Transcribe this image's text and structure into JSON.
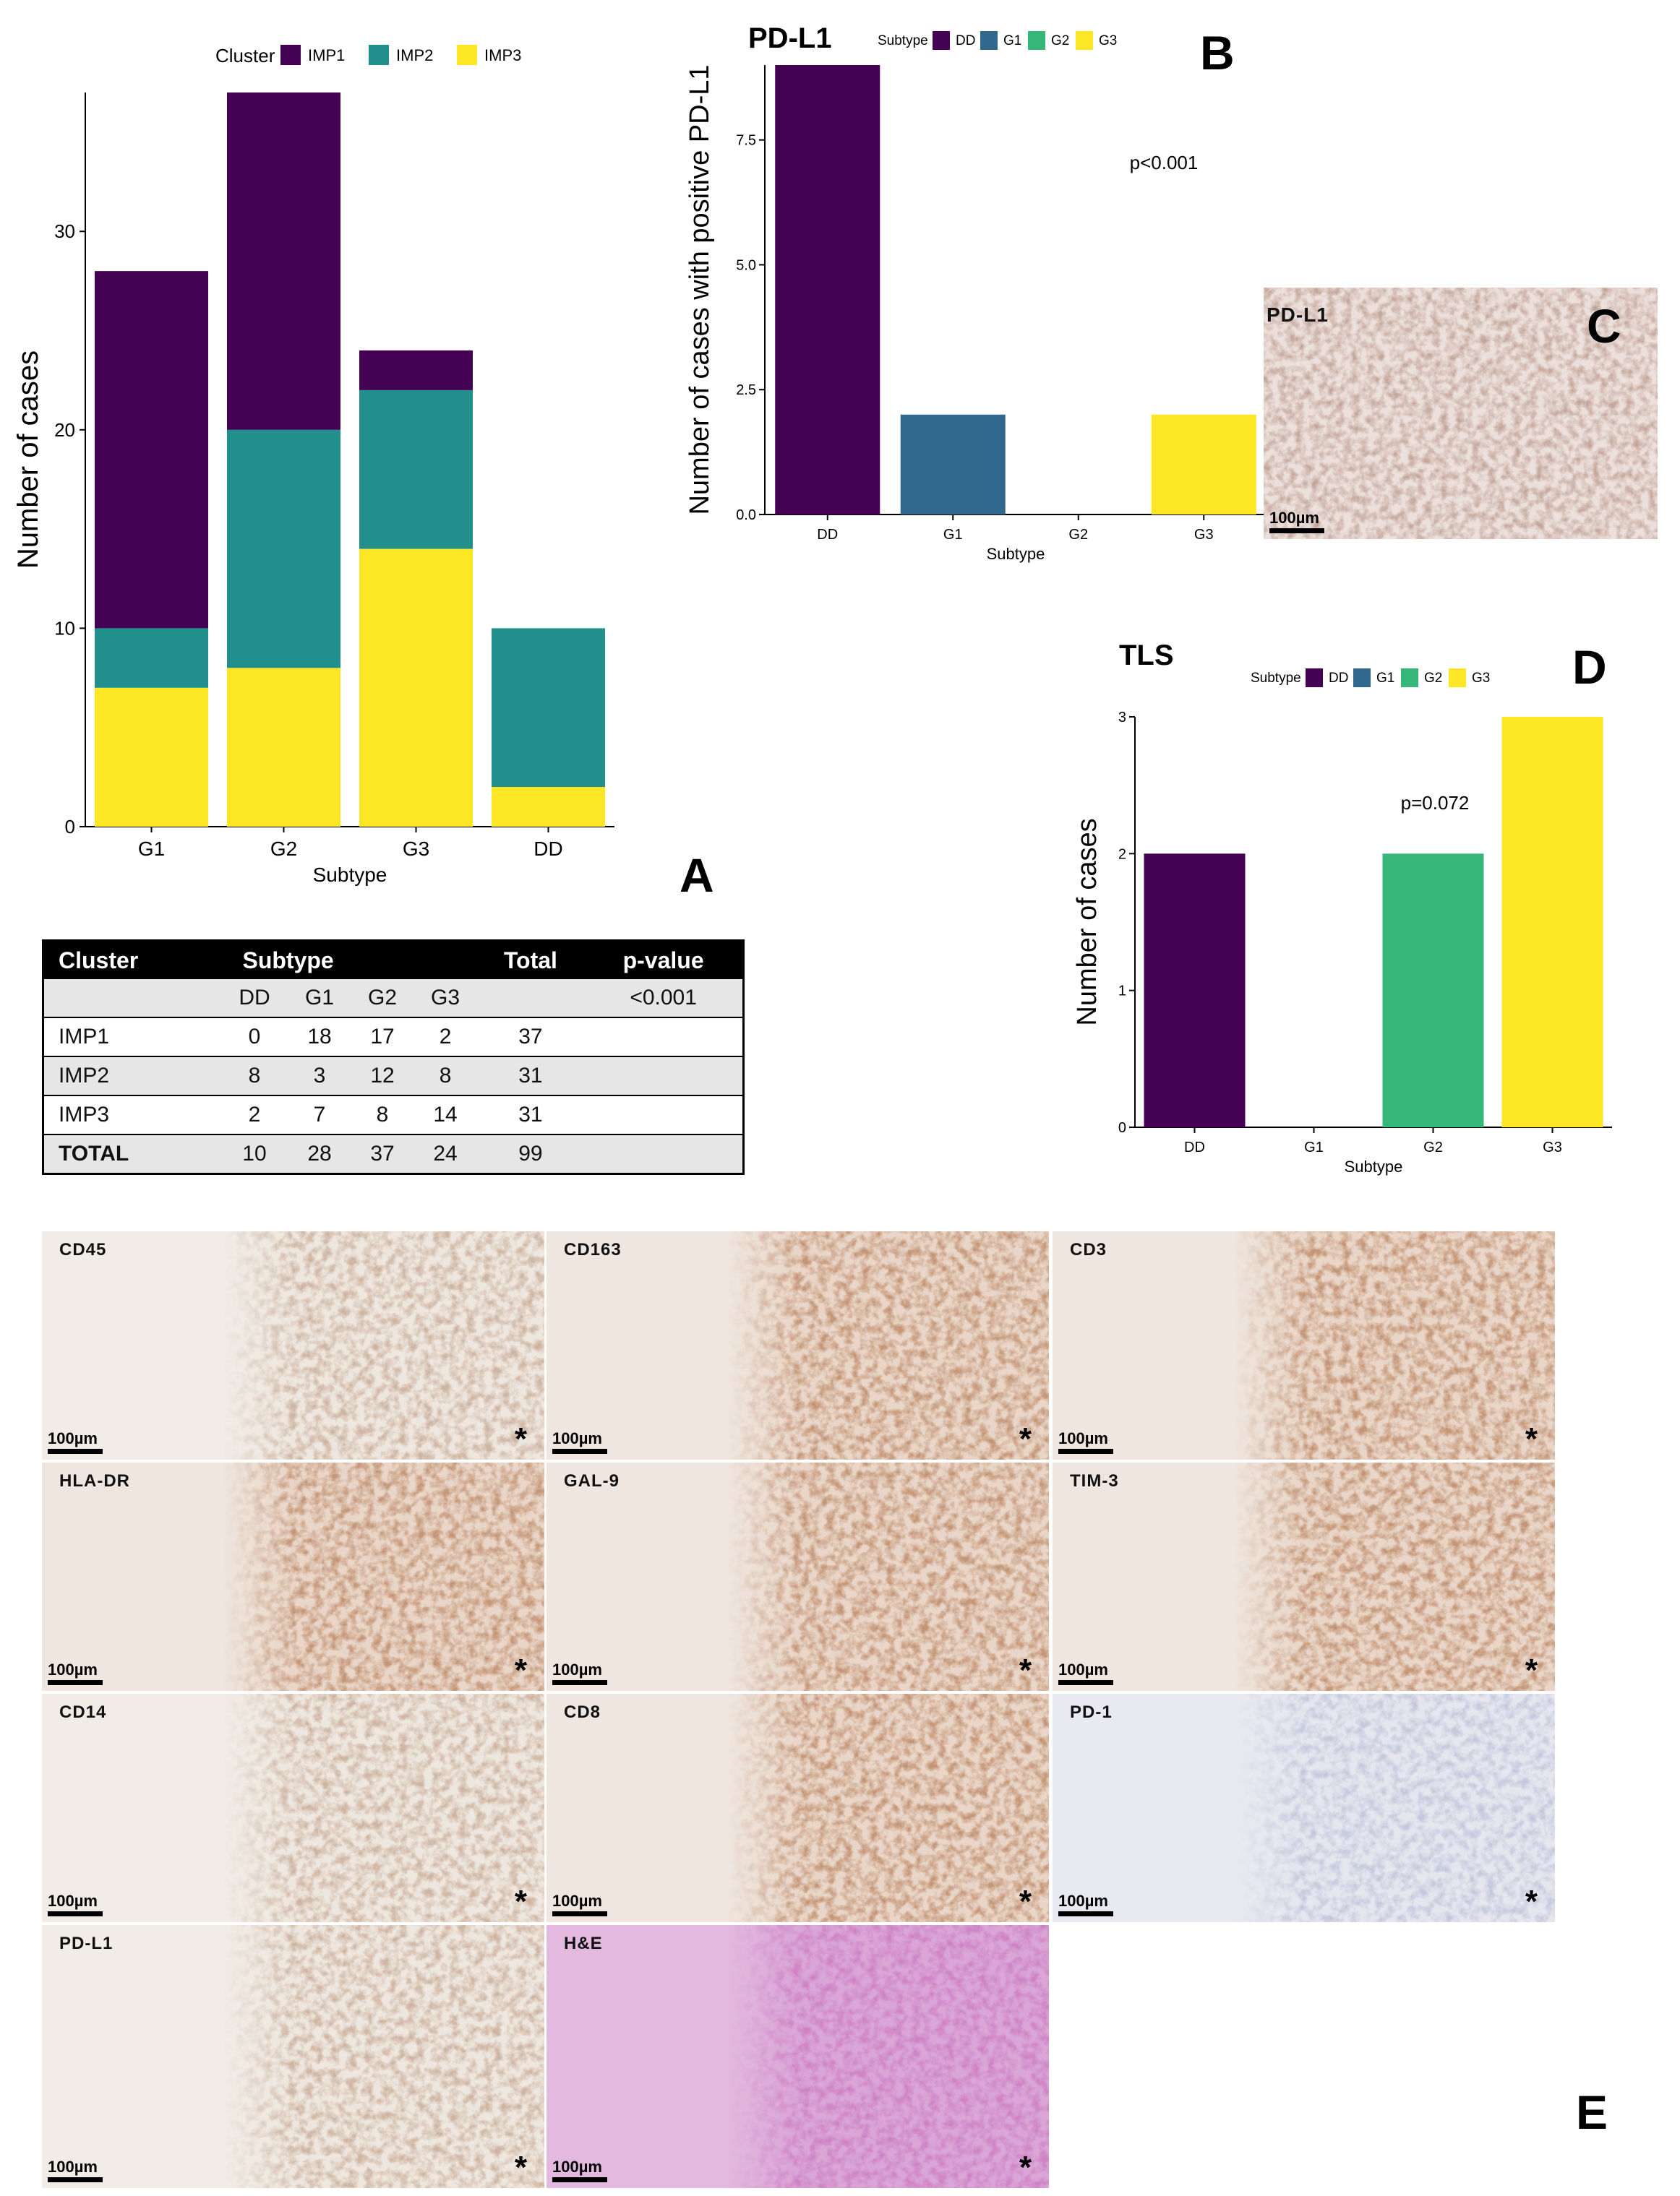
{
  "chart_data": [
    {
      "id": "A",
      "type": "bar",
      "stacked": true,
      "categories": [
        "G1",
        "G2",
        "G3",
        "DD"
      ],
      "series": [
        {
          "name": "IMP3",
          "color": "#fde725",
          "values": [
            7,
            8,
            14,
            2
          ]
        },
        {
          "name": "IMP2",
          "color": "#21908d",
          "values": [
            3,
            12,
            8,
            8
          ]
        },
        {
          "name": "IMP1",
          "color": "#440154",
          "values": [
            18,
            17,
            2,
            0
          ]
        }
      ],
      "legend_title": "Cluster",
      "legend_position": "top",
      "xlabel": "Subtype",
      "ylabel": "Number of cases",
      "ylim": [
        0,
        37
      ],
      "yticks": [
        0,
        10,
        20,
        30
      ],
      "grid": false
    },
    {
      "id": "B",
      "type": "bar",
      "title": "PD-L1",
      "categories": [
        "DD",
        "G1",
        "G2",
        "G3"
      ],
      "values": [
        9,
        2,
        0,
        2
      ],
      "colors": [
        "#440154",
        "#31688e",
        "#35b779",
        "#fde725"
      ],
      "legend_title": "Subtype",
      "legend": [
        "DD",
        "G1",
        "G2",
        "G3"
      ],
      "legend_position": "top",
      "xlabel": "Subtype",
      "ylabel": "Number of cases with positive PD-L1",
      "ylim": [
        0,
        9
      ],
      "yticks": [
        "0.0",
        "2.5",
        "5.0",
        "7.5"
      ],
      "annotation": "p<0.001",
      "grid": false
    },
    {
      "id": "D",
      "type": "bar",
      "title": "TLS",
      "categories": [
        "DD",
        "G1",
        "G2",
        "G3"
      ],
      "values": [
        2,
        0,
        2,
        3
      ],
      "colors": [
        "#440154",
        "#31688e",
        "#35b779",
        "#fde725"
      ],
      "legend_title": "Subtype",
      "legend": [
        "DD",
        "G1",
        "G2",
        "G3"
      ],
      "legend_position": "top",
      "xlabel": "Subtype",
      "ylabel": "Number of cases",
      "ylim": [
        0,
        3
      ],
      "yticks": [
        0,
        1,
        2,
        3
      ],
      "annotation": "p=0.072",
      "grid": false
    },
    {
      "id": "table",
      "type": "table",
      "header": [
        "Cluster",
        "Subtype",
        "Total",
        "p-value"
      ],
      "subheader": [
        "",
        "DD",
        "G1",
        "G2",
        "G3",
        "",
        "<0.001"
      ],
      "rows": [
        [
          "IMP1",
          "0",
          "18",
          "17",
          "2",
          "37",
          ""
        ],
        [
          "IMP2",
          "8",
          "3",
          "12",
          "8",
          "31",
          ""
        ],
        [
          "IMP3",
          "2",
          "7",
          "8",
          "14",
          "31",
          ""
        ],
        [
          "TOTAL",
          "10",
          "28",
          "37",
          "24",
          "99",
          ""
        ]
      ]
    }
  ],
  "panel_letters": {
    "a": "A",
    "b": "B",
    "c": "C",
    "d": "D",
    "e": "E"
  },
  "panel_c": {
    "label": "PD-L1",
    "scale": "100µm"
  },
  "panel_e": {
    "scale": "100µm",
    "star": "*",
    "tiles": [
      {
        "label": "CD45",
        "stain": "brown-light"
      },
      {
        "label": "CD163",
        "stain": "brown-dense"
      },
      {
        "label": "CD3",
        "stain": "brown-dense"
      },
      {
        "label": "HLA-DR",
        "stain": "brown-dense"
      },
      {
        "label": "GAL-9",
        "stain": "brown-dense"
      },
      {
        "label": "TIM-3",
        "stain": "brown-dense"
      },
      {
        "label": "CD14",
        "stain": "brown-light"
      },
      {
        "label": "CD8",
        "stain": "brown-dense"
      },
      {
        "label": "PD-1",
        "stain": "blue"
      },
      {
        "label": "PD-L1",
        "stain": "brown-light"
      },
      {
        "label": "H&E",
        "stain": "he"
      }
    ]
  }
}
